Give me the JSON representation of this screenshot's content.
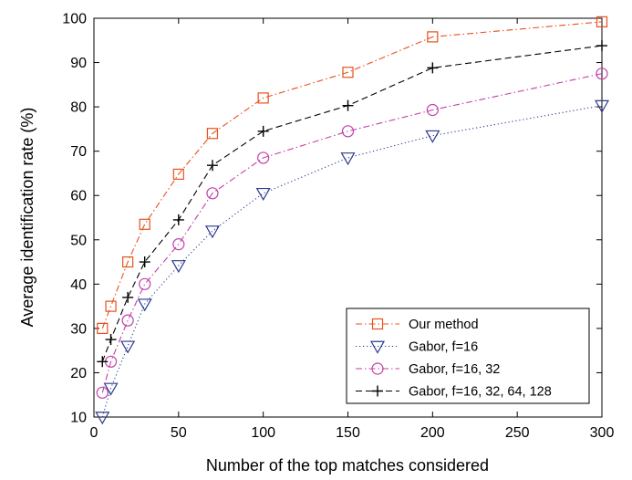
{
  "chart_data": {
    "type": "line",
    "title": "",
    "xlabel": "Number of the top matches considered",
    "ylabel": "Average identification rate (%)",
    "xlim": [
      0,
      300
    ],
    "ylim": [
      10,
      100
    ],
    "xticks": [
      0,
      50,
      100,
      150,
      200,
      250,
      300
    ],
    "yticks": [
      10,
      20,
      30,
      40,
      50,
      60,
      70,
      80,
      90,
      100
    ],
    "grid": false,
    "legend_position": "bottom-right",
    "series": [
      {
        "name": "Our method",
        "color": "#e8501f",
        "marker": "square",
        "line_style": "dash-dot",
        "x": [
          5,
          10,
          20,
          30,
          50,
          70,
          100,
          150,
          200,
          300
        ],
        "y": [
          30,
          35,
          45,
          53.5,
          64.8,
          74,
          82,
          87.8,
          95.8,
          99.2
        ]
      },
      {
        "name": "Gabor, f=16",
        "color": "#2b3b8f",
        "marker": "triangle-down",
        "line_style": "dotted",
        "x": [
          5,
          10,
          20,
          30,
          50,
          70,
          100,
          150,
          200,
          300
        ],
        "y": [
          10,
          16.5,
          26,
          35.5,
          44.2,
          52,
          60.5,
          68.5,
          73.5,
          80.3
        ]
      },
      {
        "name": "Gabor, f=16, 32",
        "color": "#c23fa8",
        "marker": "circle",
        "line_style": "dash-dot",
        "x": [
          5,
          10,
          20,
          30,
          50,
          70,
          100,
          150,
          200,
          300
        ],
        "y": [
          15.5,
          22.5,
          31.8,
          40,
          49,
          60.5,
          68.5,
          74.5,
          79.3,
          87.5
        ]
      },
      {
        "name": "Gabor, f=16, 32, 64, 128",
        "color": "#000000",
        "marker": "plus",
        "line_style": "dashed",
        "x": [
          5,
          10,
          20,
          30,
          50,
          70,
          100,
          150,
          200,
          300
        ],
        "y": [
          22.5,
          27.5,
          37,
          45,
          54.5,
          66.8,
          74.5,
          80.3,
          88.8,
          93.8
        ]
      }
    ]
  }
}
